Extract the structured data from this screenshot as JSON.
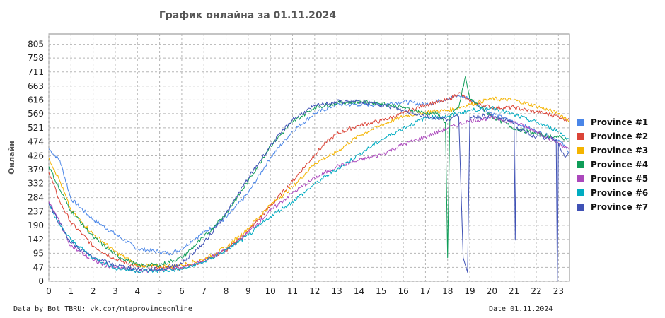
{
  "chart_data": {
    "type": "line",
    "title": "График онлайна за 01.11.2024",
    "xlabel": "",
    "ylabel": "Онлайн",
    "xlim": [
      0,
      23.5
    ],
    "ylim": [
      0,
      840
    ],
    "x_ticks": [
      0,
      1,
      2,
      3,
      4,
      5,
      6,
      7,
      8,
      9,
      10,
      11,
      12,
      13,
      14,
      15,
      16,
      17,
      18,
      19,
      20,
      21,
      22,
      23
    ],
    "y_ticks": [
      0,
      47,
      95,
      142,
      190,
      237,
      284,
      332,
      379,
      426,
      474,
      521,
      569,
      616,
      663,
      711,
      758,
      805
    ],
    "grid": true,
    "legend_position": "right",
    "series": [
      {
        "name": "Province #1",
        "color": "#4a86e8",
        "x": [
          0,
          0.5,
          1,
          2,
          3,
          4,
          5,
          5.5,
          6,
          6.5,
          7,
          8,
          9,
          10,
          11,
          12,
          13,
          14,
          15,
          16,
          17,
          17.5,
          18,
          18.5,
          19,
          19.5,
          20,
          21,
          22,
          23,
          23.5
        ],
        "y": [
          450,
          410,
          280,
          210,
          160,
          110,
          100,
          95,
          110,
          140,
          165,
          215,
          300,
          420,
          510,
          570,
          600,
          600,
          600,
          610,
          600,
          610,
          620,
          630,
          620,
          590,
          570,
          540,
          510,
          480,
          440
        ]
      },
      {
        "name": "Province #2",
        "color": "#db4437",
        "x": [
          0,
          0.5,
          1,
          2,
          3,
          4,
          5,
          6,
          7,
          8,
          9,
          10,
          11,
          12,
          12.5,
          13,
          14,
          15,
          16,
          17,
          18,
          18.5,
          19,
          20,
          21,
          22,
          23,
          23.5
        ],
        "y": [
          370,
          270,
          200,
          120,
          75,
          50,
          45,
          45,
          70,
          105,
          170,
          255,
          340,
          430,
          470,
          500,
          530,
          545,
          570,
          600,
          615,
          640,
          610,
          590,
          590,
          575,
          560,
          545
        ]
      },
      {
        "name": "Province #3",
        "color": "#f4b400",
        "x": [
          0,
          0.5,
          1,
          2,
          3,
          4,
          5,
          6,
          7,
          8,
          9,
          10,
          11,
          12,
          13,
          14,
          15,
          16,
          17,
          18,
          19,
          20,
          21,
          22,
          23,
          23.5
        ],
        "y": [
          420,
          340,
          240,
          160,
          100,
          55,
          50,
          55,
          75,
          115,
          180,
          260,
          320,
          400,
          440,
          495,
          530,
          560,
          575,
          580,
          600,
          620,
          615,
          595,
          570,
          545
        ]
      },
      {
        "name": "Province #4",
        "color": "#0f9d58",
        "x": [
          0,
          0.5,
          1,
          2,
          3,
          4,
          5,
          6,
          7,
          8,
          9,
          10,
          11,
          12,
          13,
          14,
          15,
          16,
          17,
          17.5,
          17.9,
          18,
          18.1,
          18.5,
          18.8,
          19,
          20,
          21,
          22,
          23,
          23.5
        ],
        "y": [
          390,
          310,
          240,
          150,
          90,
          55,
          55,
          80,
          150,
          230,
          340,
          460,
          540,
          590,
          605,
          610,
          605,
          590,
          570,
          570,
          540,
          80,
          560,
          590,
          695,
          620,
          560,
          520,
          500,
          490,
          480
        ]
      },
      {
        "name": "Province #5",
        "color": "#ab47bc",
        "x": [
          0,
          0.5,
          1,
          2,
          3,
          4,
          5,
          6,
          7,
          8,
          9,
          10,
          11,
          12,
          13,
          14,
          15,
          16,
          17,
          18,
          19,
          20,
          21,
          22,
          23,
          23.5
        ],
        "y": [
          270,
          200,
          120,
          70,
          45,
          35,
          38,
          45,
          70,
          105,
          165,
          240,
          300,
          350,
          390,
          410,
          430,
          465,
          490,
          520,
          545,
          555,
          540,
          510,
          470,
          445
        ]
      },
      {
        "name": "Province #6",
        "color": "#00acc1",
        "x": [
          0,
          0.5,
          1,
          2,
          3,
          4,
          5,
          6,
          7,
          8,
          9,
          10,
          11,
          12,
          13,
          14,
          15,
          16,
          17,
          18,
          19,
          20,
          21,
          22,
          23,
          23.5
        ],
        "y": [
          260,
          190,
          140,
          80,
          45,
          35,
          35,
          40,
          65,
          105,
          155,
          220,
          270,
          330,
          380,
          430,
          480,
          520,
          555,
          560,
          580,
          590,
          565,
          540,
          510,
          480
        ]
      },
      {
        "name": "Province #7",
        "color": "#3f51b5",
        "x": [
          0,
          0.5,
          1,
          2,
          3,
          4,
          5,
          6,
          7,
          8,
          9,
          10,
          11,
          12,
          13,
          14,
          15,
          16,
          17,
          18,
          18.5,
          18.7,
          18.9,
          19,
          20,
          21,
          21.05,
          21.1,
          22,
          22.9,
          22.95,
          23,
          23.3,
          23.5
        ],
        "y": [
          265,
          195,
          130,
          80,
          55,
          40,
          40,
          60,
          130,
          230,
          350,
          460,
          550,
          595,
          610,
          610,
          600,
          580,
          560,
          550,
          560,
          80,
          30,
          560,
          560,
          540,
          140,
          520,
          490,
          480,
          0,
          470,
          420,
          440
        ]
      }
    ]
  },
  "footer": {
    "source": "Data by Bot TBRU: vk.com/mtaprovinceonline",
    "date": "Date 01.11.2024"
  }
}
